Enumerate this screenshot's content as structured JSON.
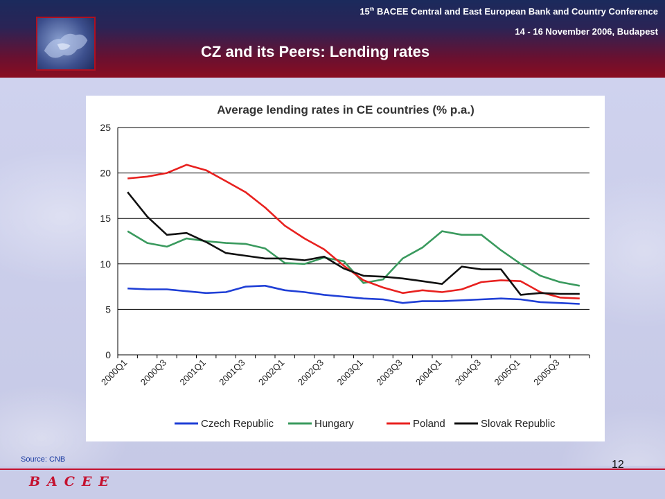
{
  "header": {
    "conference_ordinal": "15",
    "conference_ordinal_suffix": "th",
    "conference_name": "BACEE Central and East European Bank and Country Conference",
    "conference_date": "14 - 16 November 2006, Budapest",
    "slide_title": "CZ and its Peers: Lending rates"
  },
  "footer": {
    "source": "Source: CNB",
    "page_number": "12",
    "brand": "BACEE"
  },
  "colors": {
    "czech": "#1f3fd6",
    "hungary": "#3a9a5e",
    "poland": "#e8211f",
    "slovak": "#111111"
  },
  "chart_data": {
    "type": "line",
    "title": "Average lending rates in CE countries (% p.a.)",
    "xlabel": "",
    "ylabel": "",
    "ylim": [
      0,
      25
    ],
    "yticks": [
      "0",
      "5",
      "10",
      "15",
      "20",
      "25"
    ],
    "grid": true,
    "legend": "bottom",
    "x": [
      "2000Q1",
      "2000Q2",
      "2000Q3",
      "2000Q4",
      "2001Q1",
      "2001Q2",
      "2001Q3",
      "2001Q4",
      "2002Q1",
      "2002Q2",
      "2002Q3",
      "2002Q4",
      "2003Q1",
      "2003Q2",
      "2003Q3",
      "2003Q4",
      "2004Q1",
      "2004Q2",
      "2004Q3",
      "2004Q4",
      "2005Q1",
      "2005Q2",
      "2005Q3",
      "2005Q4"
    ],
    "x_tick_labels": [
      "2000Q1",
      "2000Q3",
      "2001Q1",
      "2001Q3",
      "2002Q1",
      "2002Q3",
      "2003Q1",
      "2003Q3",
      "2004Q1",
      "2004Q3",
      "2005Q1",
      "2005Q3"
    ],
    "series": [
      {
        "name": "Czech Republic",
        "color": "#1f3fd6",
        "values": [
          7.3,
          7.2,
          7.2,
          7.0,
          6.8,
          6.9,
          7.5,
          7.6,
          7.1,
          6.9,
          6.6,
          6.4,
          6.2,
          6.1,
          5.7,
          5.9,
          5.9,
          6.0,
          6.1,
          6.2,
          6.1,
          5.8,
          5.7,
          5.6
        ]
      },
      {
        "name": "Hungary",
        "color": "#3a9a5e",
        "values": [
          13.6,
          12.3,
          11.9,
          12.8,
          12.5,
          12.3,
          12.2,
          11.7,
          10.1,
          10.0,
          10.7,
          10.3,
          7.9,
          8.3,
          10.6,
          11.8,
          13.6,
          13.2,
          13.2,
          11.5,
          10.0,
          8.7,
          8.0,
          7.6
        ]
      },
      {
        "name": "Poland",
        "color": "#e8211f",
        "values": [
          19.4,
          19.6,
          20.0,
          20.9,
          20.3,
          19.1,
          17.9,
          16.2,
          14.2,
          12.8,
          11.6,
          9.8,
          8.2,
          7.4,
          6.8,
          7.1,
          6.9,
          7.2,
          8.0,
          8.2,
          8.1,
          6.9,
          6.3,
          6.2
        ]
      },
      {
        "name": "Slovak Republic",
        "color": "#111111",
        "values": [
          17.9,
          15.2,
          13.2,
          13.4,
          12.4,
          11.2,
          10.9,
          10.6,
          10.6,
          10.4,
          10.8,
          9.5,
          8.7,
          8.6,
          8.4,
          8.1,
          7.8,
          9.7,
          9.4,
          9.4,
          6.6,
          6.8,
          6.7,
          6.7
        ]
      }
    ]
  }
}
